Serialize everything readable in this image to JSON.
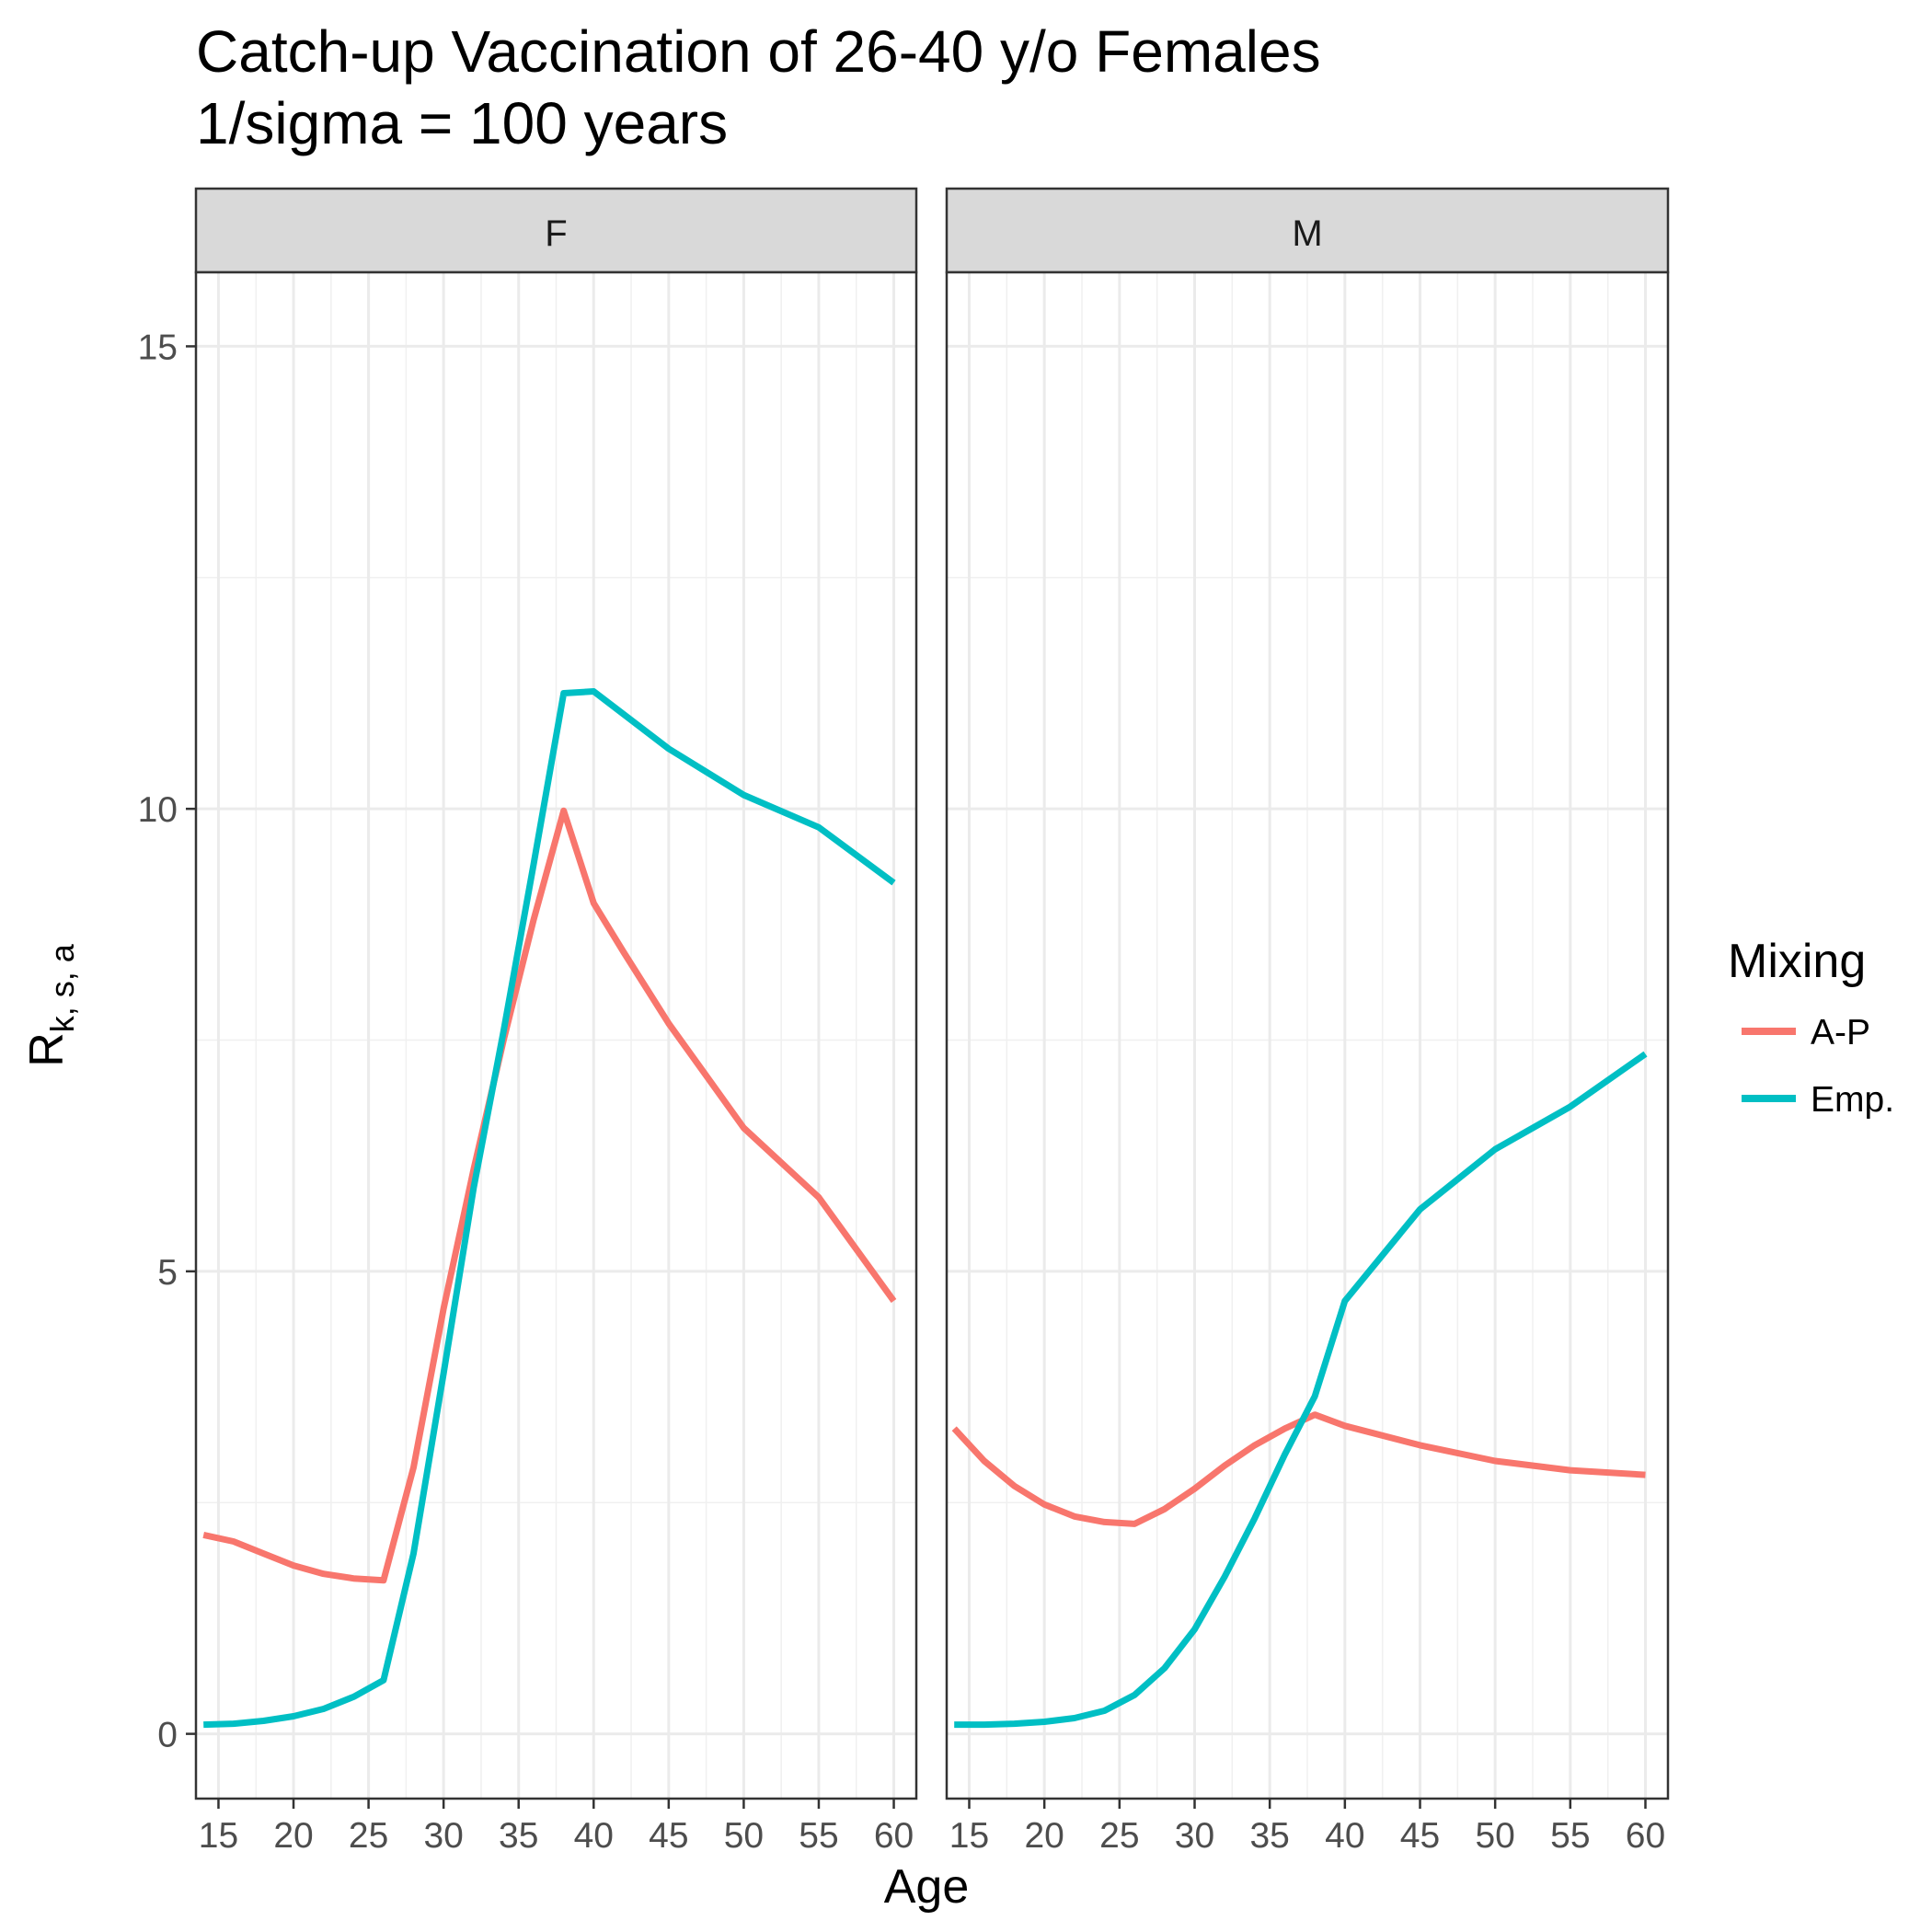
{
  "chart_data": {
    "type": "line",
    "title": "Catch-up Vaccination of 26-40 y/o Females",
    "subtitle": "1/sigma = 100 years",
    "xlabel": "Age",
    "ylabel": {
      "main": "R",
      "subscript": "k, s, a"
    },
    "xlim": [
      13.5,
      61.5
    ],
    "ylim": [
      -0.7,
      15.8
    ],
    "x_ticks": [
      15,
      20,
      25,
      30,
      35,
      40,
      45,
      50,
      55,
      60
    ],
    "y_ticks": [
      0,
      5,
      10,
      15
    ],
    "grid": true,
    "legend": {
      "title": "Mixing",
      "position": "right"
    },
    "colors": {
      "A-P": "#F8766D",
      "Emp.": "#00BFC4"
    },
    "panels": [
      {
        "label": "F",
        "series": [
          {
            "name": "A-P",
            "x": [
              14,
              16,
              18,
              20,
              22,
              24,
              26,
              28,
              30,
              32,
              34,
              36,
              38,
              40,
              42,
              45,
              50,
              55,
              60
            ],
            "y": [
              2.15,
              2.08,
              1.95,
              1.82,
              1.73,
              1.68,
              1.66,
              2.88,
              4.6,
              6.1,
              7.5,
              8.8,
              9.98,
              8.98,
              8.45,
              7.68,
              6.55,
              5.8,
              4.68
            ]
          },
          {
            "name": "Emp.",
            "x": [
              14,
              16,
              18,
              20,
              22,
              24,
              26,
              28,
              30,
              32,
              34,
              36,
              38,
              40,
              45,
              50,
              55,
              60
            ],
            "y": [
              0.1,
              0.11,
              0.14,
              0.19,
              0.27,
              0.4,
              0.58,
              1.95,
              3.9,
              5.9,
              7.6,
              9.4,
              11.25,
              11.27,
              10.65,
              10.15,
              9.8,
              9.2
            ]
          }
        ]
      },
      {
        "label": "M",
        "series": [
          {
            "name": "A-P",
            "x": [
              14,
              16,
              18,
              20,
              22,
              24,
              26,
              28,
              30,
              32,
              34,
              36,
              38,
              40,
              45,
              50,
              55,
              60
            ],
            "y": [
              3.3,
              2.95,
              2.68,
              2.48,
              2.35,
              2.29,
              2.27,
              2.43,
              2.65,
              2.9,
              3.12,
              3.3,
              3.45,
              3.33,
              3.12,
              2.95,
              2.85,
              2.8
            ]
          },
          {
            "name": "Emp.",
            "x": [
              14,
              16,
              18,
              20,
              22,
              24,
              26,
              28,
              30,
              32,
              34,
              36,
              38,
              40,
              45,
              50,
              55,
              60
            ],
            "y": [
              0.1,
              0.1,
              0.11,
              0.13,
              0.17,
              0.25,
              0.42,
              0.71,
              1.13,
              1.7,
              2.33,
              3.02,
              3.65,
              4.68,
              5.67,
              6.32,
              6.78,
              7.35
            ]
          }
        ]
      }
    ]
  }
}
